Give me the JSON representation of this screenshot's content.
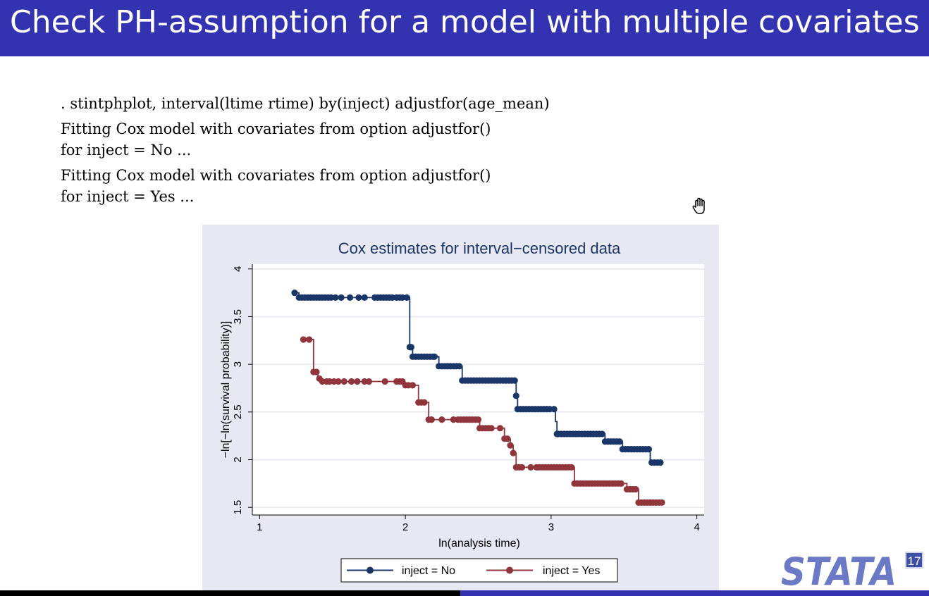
{
  "slide": {
    "title": "Check PH-assumption for a model with multiple covariates",
    "code_lines": [
      ". stintphplot, interval(ltime rtime) by(inject) adjustfor(age_mean)",
      "Fitting Cox model with covariates from option adjustfor()",
      "for inject = No ...",
      "Fitting Cox model with covariates from option adjustfor()",
      "for inject = Yes ..."
    ],
    "logo_text": "STATA",
    "version_badge": "17"
  },
  "colors": {
    "title_bar": "#3333b2",
    "series_no": "#1a3668",
    "series_yes": "#90353b",
    "plot_region": "#e8e8f2",
    "title_text": "#1a3668"
  },
  "chart_data": {
    "type": "line",
    "title": "Cox estimates for interval−censored data",
    "xlabel": "ln(analysis time)",
    "ylabel": "−ln[−ln(survival probability)]",
    "xlim": [
      0.95,
      4.05
    ],
    "ylim": [
      1.42,
      4.05
    ],
    "xticks": [
      1,
      2,
      3,
      4
    ],
    "xtick_labels": [
      "1",
      "2",
      "3",
      "4"
    ],
    "yticks": [
      1.5,
      2,
      2.5,
      3,
      3.5,
      4
    ],
    "ytick_labels": [
      "1.5",
      "2",
      "2.5",
      "3",
      "3.5",
      "4"
    ],
    "grid": "horizontal",
    "legend": "bottom",
    "series": [
      {
        "name": "inject = No",
        "steps": [
          [
            1.24,
            3.75
          ],
          [
            1.27,
            3.7
          ],
          [
            2.03,
            3.18
          ],
          [
            2.05,
            3.08
          ],
          [
            2.23,
            2.98
          ],
          [
            2.39,
            2.83
          ],
          [
            2.76,
            2.67
          ],
          [
            2.77,
            2.53
          ],
          [
            3.03,
            2.4
          ],
          [
            3.04,
            2.27
          ],
          [
            3.37,
            2.19
          ],
          [
            3.49,
            2.11
          ],
          [
            3.68,
            1.97
          ],
          [
            3.76,
            1.97
          ]
        ],
        "points": [
          1.24,
          1.27,
          1.29,
          1.31,
          1.33,
          1.35,
          1.37,
          1.39,
          1.41,
          1.43,
          1.45,
          1.47,
          1.49,
          1.52,
          1.56,
          1.62,
          1.68,
          1.72,
          1.79,
          1.81,
          1.83,
          1.85,
          1.87,
          1.89,
          1.91,
          1.94,
          1.96,
          1.98,
          2.01,
          2.03,
          2.04,
          2.05,
          2.07,
          2.09,
          2.11,
          2.13,
          2.15,
          2.17,
          2.19,
          2.2,
          2.23,
          2.25,
          2.27,
          2.29,
          2.31,
          2.33,
          2.35,
          2.37,
          2.39,
          2.41,
          2.43,
          2.45,
          2.47,
          2.49,
          2.51,
          2.53,
          2.55,
          2.57,
          2.59,
          2.61,
          2.63,
          2.65,
          2.67,
          2.69,
          2.71,
          2.73,
          2.75,
          2.76,
          2.77,
          2.79,
          2.81,
          2.83,
          2.85,
          2.87,
          2.89,
          2.91,
          2.93,
          2.95,
          2.97,
          2.99,
          3.02,
          3.04,
          3.05,
          3.07,
          3.09,
          3.11,
          3.13,
          3.15,
          3.17,
          3.19,
          3.21,
          3.23,
          3.25,
          3.27,
          3.29,
          3.31,
          3.33,
          3.35,
          3.37,
          3.39,
          3.41,
          3.43,
          3.45,
          3.47,
          3.49,
          3.51,
          3.53,
          3.55,
          3.57,
          3.59,
          3.61,
          3.63,
          3.65,
          3.67,
          3.69,
          3.71,
          3.73,
          3.75
        ]
      },
      {
        "name": "inject = Yes",
        "steps": [
          [
            1.3,
            3.26
          ],
          [
            1.37,
            2.92
          ],
          [
            1.4,
            2.85
          ],
          [
            1.42,
            2.82
          ],
          [
            1.99,
            2.78
          ],
          [
            2.09,
            2.6
          ],
          [
            2.16,
            2.42
          ],
          [
            2.51,
            2.33
          ],
          [
            2.68,
            2.22
          ],
          [
            2.72,
            2.15
          ],
          [
            2.74,
            2.07
          ],
          [
            2.76,
            1.92
          ],
          [
            3.16,
            1.75
          ],
          [
            3.52,
            1.69
          ],
          [
            3.6,
            1.55
          ],
          [
            3.76,
            1.55
          ]
        ],
        "points": [
          1.3,
          1.34,
          1.37,
          1.39,
          1.41,
          1.43,
          1.46,
          1.48,
          1.51,
          1.54,
          1.58,
          1.63,
          1.67,
          1.72,
          1.75,
          1.86,
          1.94,
          1.96,
          1.98,
          2.0,
          2.02,
          2.05,
          2.09,
          2.11,
          2.13,
          2.16,
          2.18,
          2.25,
          2.33,
          2.36,
          2.38,
          2.4,
          2.42,
          2.44,
          2.46,
          2.48,
          2.5,
          2.51,
          2.53,
          2.55,
          2.57,
          2.59,
          2.65,
          2.68,
          2.7,
          2.72,
          2.74,
          2.76,
          2.78,
          2.8,
          2.86,
          2.9,
          2.92,
          2.94,
          2.96,
          2.98,
          3.0,
          3.02,
          3.04,
          3.06,
          3.08,
          3.1,
          3.12,
          3.14,
          3.16,
          3.18,
          3.2,
          3.22,
          3.24,
          3.26,
          3.28,
          3.3,
          3.32,
          3.34,
          3.36,
          3.38,
          3.4,
          3.42,
          3.44,
          3.46,
          3.48,
          3.52,
          3.54,
          3.56,
          3.58,
          3.6,
          3.62,
          3.64,
          3.66,
          3.68,
          3.7,
          3.72,
          3.74,
          3.76
        ]
      }
    ]
  }
}
